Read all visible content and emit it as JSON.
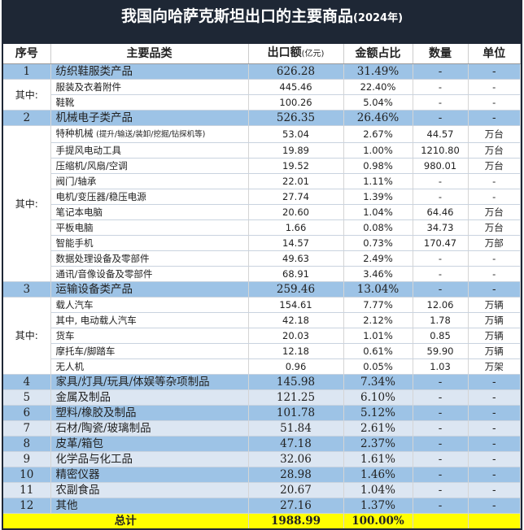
{
  "title": {
    "main": "我国向哈萨克斯坦出口的主要商品",
    "year": "(2024年)"
  },
  "headers": {
    "no": "序号",
    "category": "主要品类",
    "export": "出口额",
    "export_unit": "(亿元)",
    "share": "金额占比",
    "qty": "数量",
    "unit": "单位"
  },
  "of_which": "其中:",
  "groups": [
    {
      "no": "1",
      "name": "纺织鞋服类产品",
      "export": "626.28",
      "share": "31.49%",
      "qty": "-",
      "unit": "-",
      "subs": [
        {
          "name": "服装及衣着附件",
          "export": "445.46",
          "share": "22.40%",
          "qty": "-",
          "unit": "-"
        },
        {
          "name": "鞋靴",
          "export": "100.26",
          "share": "5.04%",
          "qty": "-",
          "unit": "-"
        }
      ]
    },
    {
      "no": "2",
      "name": "机械电子类产品",
      "export": "526.35",
      "share": "26.46%",
      "qty": "-",
      "unit": "-",
      "subs": [
        {
          "name": "特种机械",
          "note": "(提升/输送/装卸/挖掘/钻探机等)",
          "export": "53.04",
          "share": "2.67%",
          "qty": "44.57",
          "unit": "万台"
        },
        {
          "name": "手提风电动工具",
          "export": "19.89",
          "share": "1.00%",
          "qty": "1210.80",
          "unit": "万台"
        },
        {
          "name": "压缩机/风扇/空调",
          "export": "19.52",
          "share": "0.98%",
          "qty": "980.01",
          "unit": "万台"
        },
        {
          "name": "阀门/轴承",
          "export": "22.01",
          "share": "1.11%",
          "qty": "-",
          "unit": "-"
        },
        {
          "name": "电机/变压器/稳压电源",
          "export": "27.74",
          "share": "1.39%",
          "qty": "-",
          "unit": "-"
        },
        {
          "name": "笔记本电脑",
          "export": "20.60",
          "share": "1.04%",
          "qty": "64.46",
          "unit": "万台"
        },
        {
          "name": "平板电脑",
          "export": "1.66",
          "share": "0.08%",
          "qty": "34.73",
          "unit": "万台"
        },
        {
          "name": "智能手机",
          "export": "14.57",
          "share": "0.73%",
          "qty": "170.47",
          "unit": "万部"
        },
        {
          "name": "数据处理设备及零部件",
          "export": "49.63",
          "share": "2.49%",
          "qty": "-",
          "unit": "-"
        },
        {
          "name": "通讯/音像设备及零部件",
          "export": "68.91",
          "share": "3.46%",
          "qty": "-",
          "unit": "-"
        }
      ]
    },
    {
      "no": "3",
      "name": "运输设备类产品",
      "export": "259.46",
      "share": "13.04%",
      "qty": "-",
      "unit": "-",
      "subs": [
        {
          "name": "载人汽车",
          "export": "154.61",
          "share": "7.77%",
          "qty": "12.06",
          "unit": "万辆"
        },
        {
          "name": "其中, 电动载人汽车",
          "export": "42.18",
          "share": "2.12%",
          "qty": "1.78",
          "unit": "万辆"
        },
        {
          "name": "货车",
          "export": "20.03",
          "share": "1.01%",
          "qty": "0.85",
          "unit": "万辆"
        },
        {
          "name": "摩托车/脚踏车",
          "export": "12.18",
          "share": "0.61%",
          "qty": "59.90",
          "unit": "万辆"
        },
        {
          "name": "无人机",
          "export": "0.96",
          "share": "0.05%",
          "qty": "1.03",
          "unit": "万架"
        }
      ]
    },
    {
      "no": "4",
      "name": "家具/灯具/玩具/体娱等杂项制品",
      "export": "145.98",
      "share": "7.34%",
      "qty": "-",
      "unit": "-",
      "subs": []
    },
    {
      "no": "5",
      "name": "金属及制品",
      "export": "121.25",
      "share": "6.10%",
      "qty": "-",
      "unit": "-",
      "subs": []
    },
    {
      "no": "6",
      "name": "塑料/橡胶及制品",
      "export": "101.78",
      "share": "5.12%",
      "qty": "-",
      "unit": "-",
      "subs": []
    },
    {
      "no": "7",
      "name": "石材/陶瓷/玻璃制品",
      "export": "51.84",
      "share": "2.61%",
      "qty": "-",
      "unit": "-",
      "subs": []
    },
    {
      "no": "8",
      "name": "皮革/箱包",
      "export": "47.18",
      "share": "2.37%",
      "qty": "-",
      "unit": "-",
      "subs": []
    },
    {
      "no": "9",
      "name": "化学品与化工品",
      "export": "32.06",
      "share": "1.61%",
      "qty": "-",
      "unit": "-",
      "subs": []
    },
    {
      "no": "10",
      "name": "精密仪器",
      "export": "28.98",
      "share": "1.46%",
      "qty": "-",
      "unit": "-",
      "subs": []
    },
    {
      "no": "11",
      "name": "农副食品",
      "export": "20.67",
      "share": "1.04%",
      "qty": "-",
      "unit": "-",
      "subs": []
    },
    {
      "no": "12",
      "name": "其他",
      "export": "27.16",
      "share": "1.37%",
      "qty": "-",
      "unit": "-",
      "subs": []
    }
  ],
  "total": {
    "label": "总计",
    "export": "1988.99",
    "share": "100.00%"
  },
  "colors": {
    "title_bg": "#1e2735",
    "major_row": "#9dc3e6",
    "light_row": "#dce6f2",
    "total_row": "#ffff00"
  }
}
